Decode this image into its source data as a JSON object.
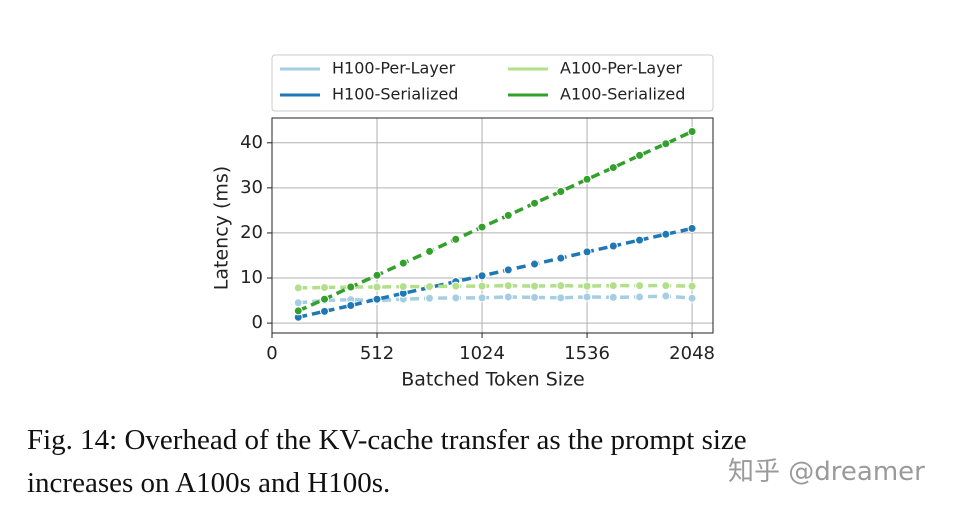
{
  "chart_data": {
    "type": "line",
    "x": [
      128,
      256,
      384,
      512,
      640,
      768,
      896,
      1024,
      1152,
      1280,
      1408,
      1536,
      1664,
      1792,
      1920,
      2048
    ],
    "series": [
      {
        "name": "H100-Per-Layer",
        "color": "#a6cee3",
        "values": [
          4.5,
          5.0,
          5.2,
          5.0,
          5.3,
          5.5,
          5.6,
          5.6,
          5.8,
          5.7,
          5.6,
          5.8,
          5.7,
          5.8,
          6.0,
          5.5
        ]
      },
      {
        "name": "H100-Serialized",
        "color": "#1f78b4",
        "values": [
          1.3,
          2.6,
          3.9,
          5.3,
          6.6,
          7.9,
          9.2,
          10.5,
          11.8,
          13.1,
          14.4,
          15.8,
          17.1,
          18.4,
          19.7,
          21.0
        ]
      },
      {
        "name": "A100-Per-Layer",
        "color": "#b2df8a",
        "values": [
          7.8,
          7.9,
          8.0,
          8.0,
          8.1,
          8.1,
          8.2,
          8.2,
          8.3,
          8.2,
          8.3,
          8.2,
          8.3,
          8.3,
          8.3,
          8.2
        ]
      },
      {
        "name": "A100-Serialized",
        "color": "#33a02c",
        "values": [
          2.7,
          5.3,
          8.0,
          10.6,
          13.3,
          15.9,
          18.6,
          21.3,
          23.9,
          26.6,
          29.2,
          31.9,
          34.5,
          37.2,
          39.8,
          42.5
        ]
      }
    ],
    "xlabel": "Batched Token Size",
    "ylabel": "Latency (ms)",
    "xlim": [
      0,
      2150
    ],
    "ylim": [
      -2.2,
      45.5
    ],
    "xticks": [
      0,
      512,
      1024,
      1536,
      2048
    ],
    "yticks": [
      0,
      10,
      20,
      30,
      40
    ],
    "grid": true,
    "legend": "top"
  },
  "caption": {
    "lines": [
      "Fig. 14: Overhead of the KV-cache transfer as the prompt size",
      "increases on A100s and H100s."
    ]
  },
  "watermark": "知乎 @dreamer"
}
